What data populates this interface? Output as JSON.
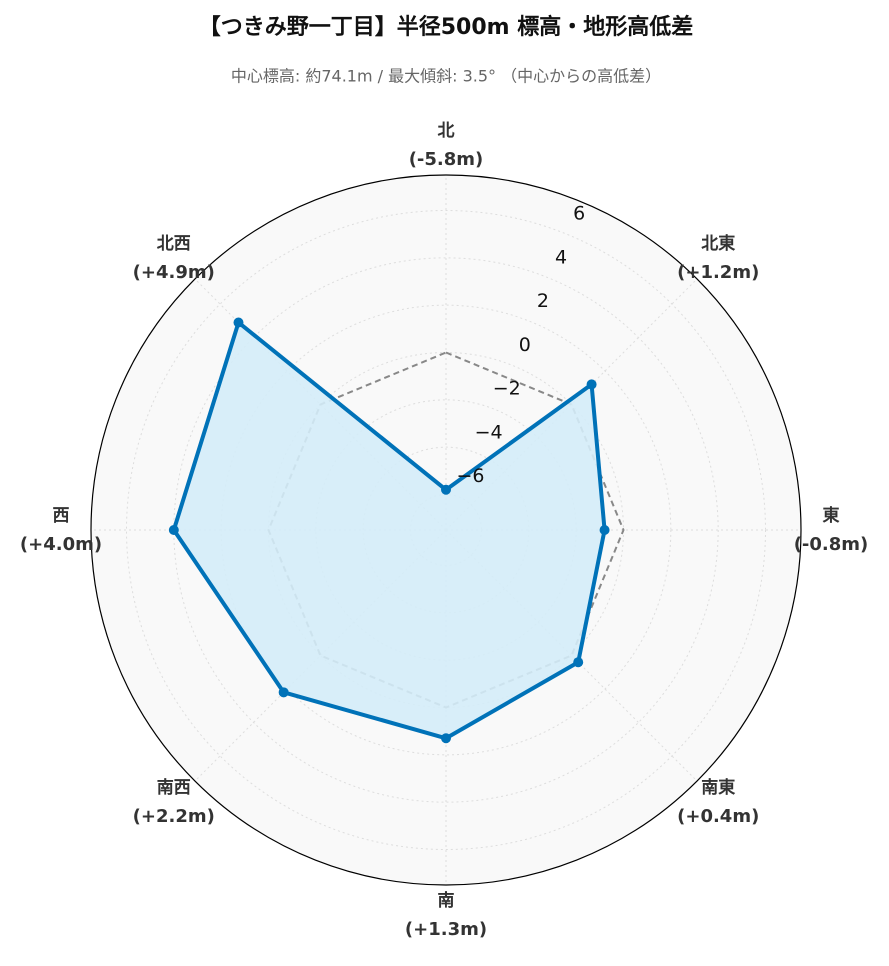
{
  "chart_data": {
    "type": "radar",
    "title": "【つきみ野一丁目】半径500m 標高・地形高低差",
    "subtitle": "中心標高: 約74.1m / 最大傾斜: 3.5° （中心からの高低差）",
    "categories": [
      "北",
      "北東",
      "東",
      "南東",
      "南",
      "南西",
      "西",
      "北西"
    ],
    "values": [
      -5.8,
      1.2,
      -0.8,
      0.4,
      1.3,
      2.2,
      4.0,
      4.9
    ],
    "value_labels": [
      "(-5.8m)",
      "(+1.2m)",
      "(-0.8m)",
      "(+0.4m)",
      "(+1.3m)",
      "(+2.2m)",
      "(+4.0m)",
      "(+4.9m)"
    ],
    "color": "#0072b8",
    "fill_color": "#d4ecf8",
    "baseline": 0,
    "ylim": [
      -7.5,
      7.5
    ],
    "yticks": [
      {
        "value": -6,
        "label": "−6"
      },
      {
        "value": -4,
        "label": "−4"
      },
      {
        "value": -2,
        "label": "−2"
      },
      0,
      2,
      4,
      6
    ],
    "grid": true
  }
}
